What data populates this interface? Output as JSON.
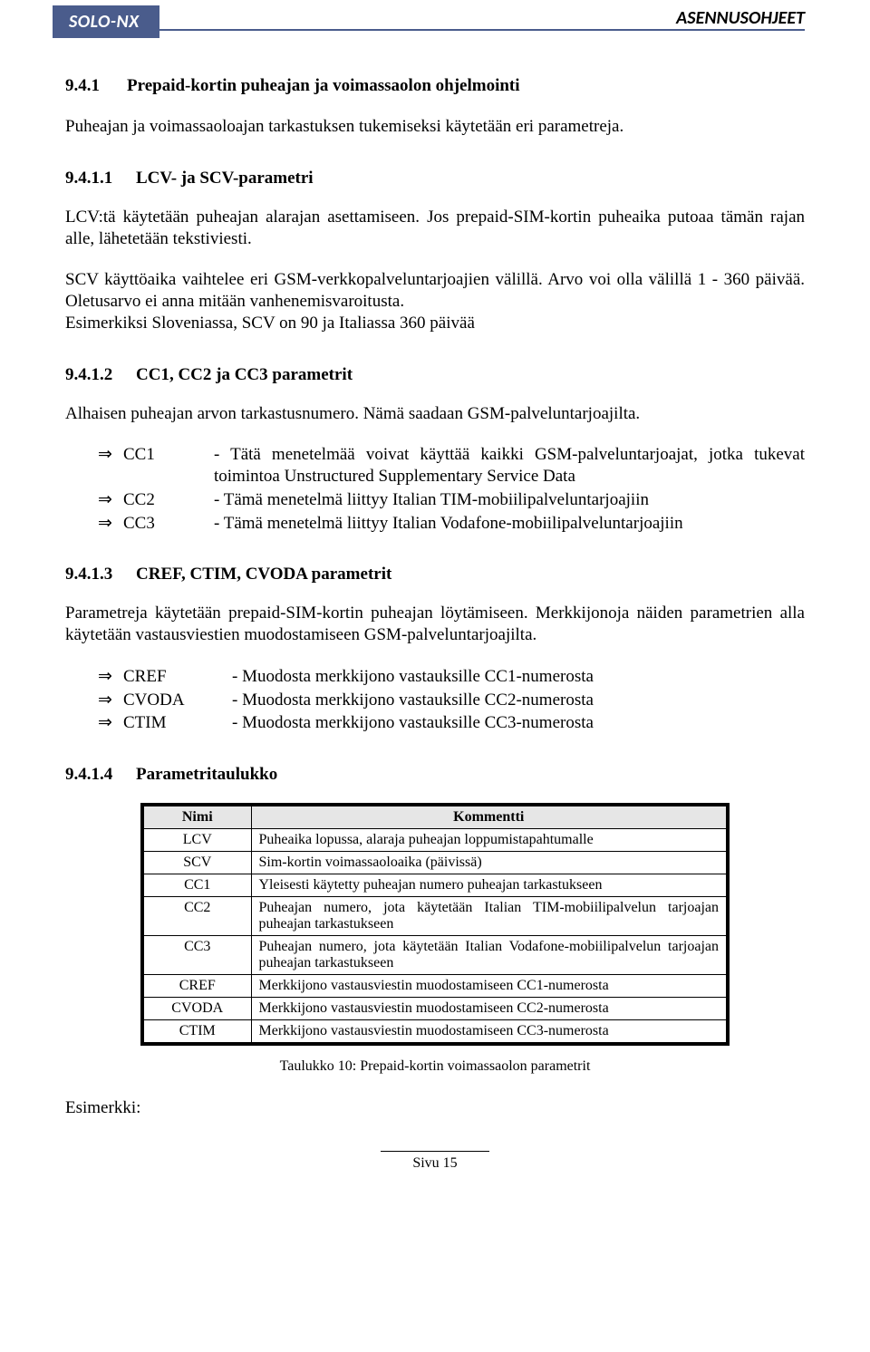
{
  "header": {
    "left": "SOLO-NX",
    "right": "ASENNUSOHJEET"
  },
  "s941": {
    "num": "9.4.1",
    "title": "Prepaid-kortin puheajan ja voimassaolon ohjelmointi",
    "p1": "Puheajan ja voimassaoloajan tarkastuksen tukemiseksi käytetään eri parametreja."
  },
  "s9411": {
    "num": "9.4.1.1",
    "title": "LCV- ja SCV-parametri",
    "p1": "LCV:tä käytetään puheajan alarajan asettamiseen. Jos prepaid-SIM-kortin puheaika putoaa tämän rajan alle, lähetetään tekstiviesti.",
    "p2": "SCV käyttöaika vaihtelee eri GSM-verkkopalveluntarjoajien välillä. Arvo voi olla välillä 1 - 360 päivää. Oletusarvo ei anna mitään vanhenemisvaroitusta.",
    "p3": "Esimerkiksi Sloveniassa, SCV on 90 ja Italiassa 360 päivää"
  },
  "s9412": {
    "num": "9.4.1.2",
    "title": "CC1, CC2 ja CC3 parametrit",
    "p1": "Alhaisen puheajan arvon tarkastusnumero. Nämä saadaan GSM-palveluntarjoajilta.",
    "items": [
      {
        "label": "CC1",
        "desc": "- Tätä menetelmää voivat käyttää kaikki GSM-palveluntarjoajat, jotka tukevat toimintoa Unstructured Supplementary Service Data"
      },
      {
        "label": "CC2",
        "desc": "- Tämä menetelmä liittyy Italian TIM-mobiilipalveluntarjoajiin"
      },
      {
        "label": "CC3",
        "desc": "- Tämä menetelmä liittyy Italian Vodafone-mobiilipalveluntarjoajiin"
      }
    ]
  },
  "s9413": {
    "num": "9.4.1.3",
    "title": "CREF, CTIM, CVODA parametrit",
    "p1": "Parametreja käytetään prepaid-SIM-kortin puheajan löytämiseen. Merkkijonoja näiden parametrien alla käytetään vastausviestien muodostamiseen GSM-palveluntarjoajilta.",
    "items": [
      {
        "label": "CREF",
        "desc": "- Muodosta merkkijono vastauksille CC1-numerosta"
      },
      {
        "label": "CVODA",
        "desc": "- Muodosta merkkijono vastauksille CC2-numerosta"
      },
      {
        "label": "CTIM",
        "desc": "- Muodosta merkkijono vastauksille CC3-numerosta"
      }
    ]
  },
  "s9414": {
    "num": "9.4.1.4",
    "title": "Parametritaulukko",
    "table": {
      "col_name": "Nimi",
      "col_comment": "Kommentti",
      "rows": [
        {
          "name": "LCV",
          "comment": "Puheaika lopussa, alaraja puheajan loppumistapahtumalle"
        },
        {
          "name": "SCV",
          "comment": "Sim-kortin voimassaoloaika (päivissä)"
        },
        {
          "name": "CC1",
          "comment": "Yleisesti käytetty puheajan numero puheajan tarkastukseen"
        },
        {
          "name": "CC2",
          "comment": "Puheajan numero, jota käytetään Italian TIM-mobiilipalvelun tarjoajan puheajan tarkastukseen"
        },
        {
          "name": "CC3",
          "comment": "Puheajan numero, jota käytetään Italian Vodafone-mobiilipalvelun tarjoajan puheajan tarkastukseen"
        },
        {
          "name": "CREF",
          "comment": "Merkkijono vastausviestin muodostamiseen CC1-numerosta"
        },
        {
          "name": "CVODA",
          "comment": "Merkkijono vastausviestin muodostamiseen CC2-numerosta"
        },
        {
          "name": "CTIM",
          "comment": "Merkkijono vastausviestin muodostamiseen CC3-numerosta"
        }
      ]
    },
    "caption": "Taulukko 10: Prepaid-kortin voimassaolon parametrit",
    "example_label": "Esimerkki:"
  },
  "footer": "Sivu 15",
  "arrow_glyph": "⇒"
}
